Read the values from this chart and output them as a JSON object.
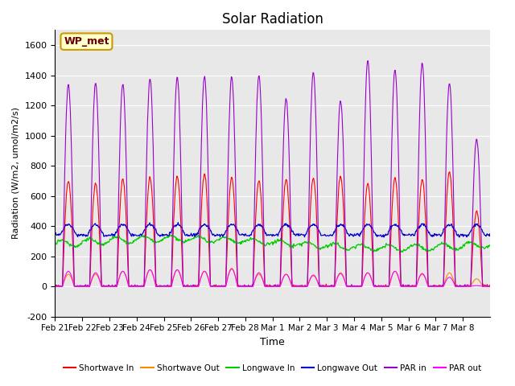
{
  "title": "Solar Radiation",
  "xlabel": "Time",
  "ylabel": "Radiation (W/m2, umol/m2/s)",
  "ylim": [
    -200,
    1700
  ],
  "yticks": [
    -200,
    0,
    200,
    400,
    600,
    800,
    1000,
    1200,
    1400,
    1600
  ],
  "xtick_labels": [
    "Feb 21",
    "Feb 22",
    "Feb 23",
    "Feb 24",
    "Feb 25",
    "Feb 26",
    "Feb 27",
    "Feb 28",
    "Mar 1",
    "Mar 2",
    "Mar 3",
    "Mar 4",
    "Mar 5",
    "Mar 6",
    "Mar 7",
    "Mar 8"
  ],
  "plot_bg_color": "#e8e8e8",
  "annotation_text": "WP_met",
  "annotation_bg": "#ffffcc",
  "annotation_border": "#cc9900",
  "legend_entries": [
    "Shortwave In",
    "Shortwave Out",
    "Longwave In",
    "Longwave Out",
    "PAR in",
    "PAR out"
  ],
  "legend_colors": [
    "#ff0000",
    "#ff8800",
    "#00cc00",
    "#0000cc",
    "#9900cc",
    "#ff00ff"
  ],
  "sw_in_peaks": [
    700,
    680,
    710,
    720,
    730,
    750,
    720,
    700,
    710,
    720,
    730,
    680,
    720,
    710,
    760,
    500
  ],
  "sw_out_peaks": [
    80,
    80,
    100,
    110,
    110,
    100,
    120,
    80,
    80,
    70,
    90,
    90,
    100,
    80,
    90,
    50
  ],
  "par_in_peaks": [
    1340,
    1350,
    1340,
    1380,
    1390,
    1395,
    1390,
    1400,
    1250,
    1420,
    1230,
    1500,
    1440,
    1480,
    1350,
    980
  ],
  "par_out_peaks": [
    100,
    90,
    100,
    110,
    110,
    100,
    115,
    90,
    80,
    75,
    85,
    90,
    100,
    85,
    60,
    5
  ],
  "num_days": 16,
  "points_per_day": 48
}
